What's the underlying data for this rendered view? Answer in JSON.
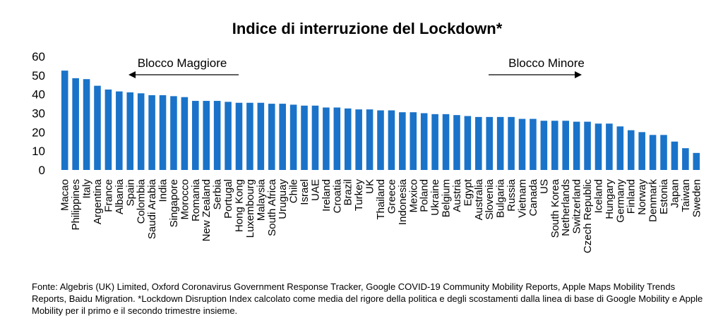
{
  "colors": {
    "bar": "#1a73c8",
    "text": "#000000",
    "axis": "#000000"
  },
  "annotations": {
    "left": {
      "label": "Blocco Maggiore",
      "direction": "left"
    },
    "right": {
      "label": "Blocco Minore",
      "direction": "right"
    }
  },
  "footnote": "Fonte: Algebris (UK) Limited, Oxford Coronavirus Government Response Tracker, Google COVID-19 Community Mobility Reports, Apple Maps Mobility Trends Reports, Baidu Migration. *Lockdown Disruption Index calcolato come media del rigore della politica e degli scostamenti dalla linea di base di Google Mobility e Apple Mobility per il primo e il secondo trimestre insieme.",
  "chart_data": {
    "type": "bar",
    "title": "Indice di interruzione del Lockdown*",
    "xlabel": "",
    "ylabel": "",
    "ylim": [
      0,
      60
    ],
    "yticks": [
      0,
      10,
      20,
      30,
      40,
      50,
      60
    ],
    "grid": false,
    "legend": "none",
    "categories": [
      "Macao",
      "Philippines",
      "Italy",
      "Argentina",
      "France",
      "Albania",
      "Spain",
      "Colombia",
      "Saudi Arabia",
      "India",
      "Singapore",
      "Morocco",
      "Romania",
      "New Zealand",
      "Serbia",
      "Portugal",
      "Hong Kong",
      "Luxembourg",
      "Malaysia",
      "South Africa",
      "Uruguay",
      "Chile",
      "Israel",
      "UAE",
      "Ireland",
      "Croatia",
      "Brazil",
      "Turkey",
      "UK",
      "Thailand",
      "Greece",
      "Indonesia",
      "Mexico",
      "Poland",
      "Ukraine",
      "Belgium",
      "Austria",
      "Egypt",
      "Australia",
      "Slovenia",
      "Bulgaria",
      "Russia",
      "Vietnam",
      "Canada",
      "US",
      "South Korea",
      "Netherlands",
      "Switzerland",
      "Czech Republic",
      "Iceland",
      "Hungary",
      "Germany",
      "Finland",
      "Norway",
      "Denmark",
      "Estonia",
      "Japan",
      "Taiwan",
      "Sweden"
    ],
    "values": [
      52.5,
      48.5,
      48,
      44.5,
      42.5,
      41.5,
      41,
      40.5,
      39.5,
      39.5,
      39,
      38.5,
      36.5,
      36.5,
      36.5,
      36,
      35.5,
      35.5,
      35.5,
      35,
      35,
      34.5,
      34,
      34,
      33,
      33,
      32.5,
      32,
      32,
      31.5,
      31.5,
      30.5,
      30.5,
      30,
      29.5,
      29.5,
      29,
      28.5,
      28,
      28,
      28,
      28,
      27,
      27,
      26,
      26,
      26,
      25.5,
      25.5,
      24.5,
      24.5,
      23,
      21,
      20,
      18.5,
      18.5,
      15,
      11.5,
      9
    ]
  }
}
